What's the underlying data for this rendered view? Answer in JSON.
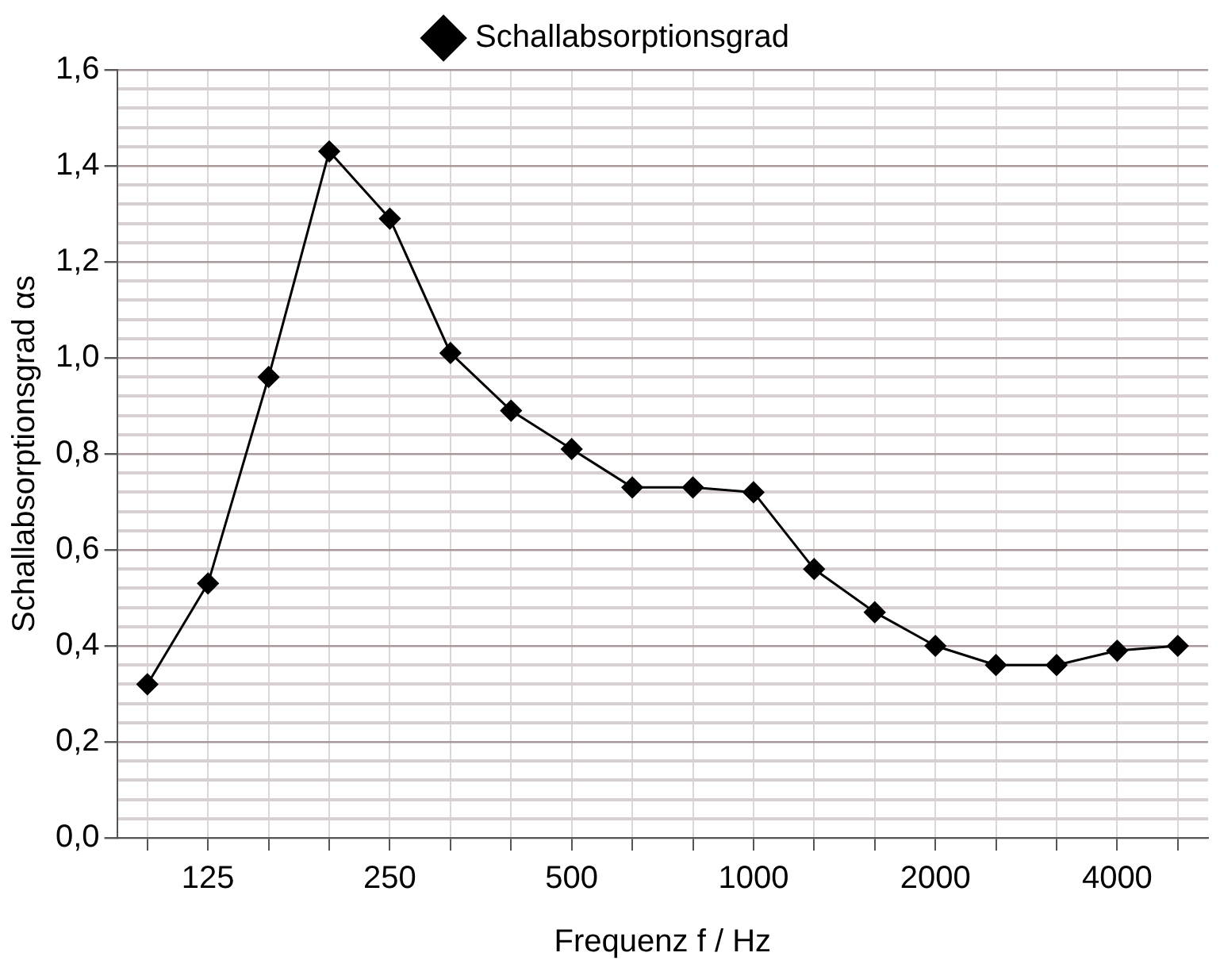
{
  "chart_data": {
    "type": "line",
    "xlabel": "Frequenz f / Hz",
    "ylabel": "Schallabsorptionsgrad αs",
    "categories": [
      null,
      "125",
      null,
      null,
      "250",
      null,
      null,
      "500",
      null,
      null,
      "1000",
      null,
      null,
      "2000",
      null,
      null,
      "4000",
      null
    ],
    "series": [
      {
        "name": "Schallabsorptionsgrad",
        "color": "#000000",
        "values": [
          0.32,
          0.53,
          0.96,
          1.43,
          1.29,
          1.01,
          0.89,
          0.81,
          0.73,
          0.73,
          0.72,
          0.56,
          0.47,
          0.4,
          0.36,
          0.36,
          0.39,
          0.4
        ]
      }
    ],
    "ylim": [
      0,
      1.6
    ],
    "yticks": [
      {
        "value": 0,
        "label": "0,0"
      },
      {
        "value": 0.04,
        "label": null
      },
      {
        "value": 0.08,
        "label": null
      },
      {
        "value": 0.12,
        "label": null
      },
      {
        "value": 0.16,
        "label": null
      },
      {
        "value": 0.2,
        "label": "0,2"
      },
      {
        "value": 0.24,
        "label": null
      },
      {
        "value": 0.28,
        "label": null
      },
      {
        "value": 0.32,
        "label": null
      },
      {
        "value": 0.36,
        "label": null
      },
      {
        "value": 0.4,
        "label": "0,4"
      },
      {
        "value": 0.44,
        "label": null
      },
      {
        "value": 0.48,
        "label": null
      },
      {
        "value": 0.52,
        "label": null
      },
      {
        "value": 0.56,
        "label": null
      },
      {
        "value": 0.6,
        "label": "0,6"
      },
      {
        "value": 0.64,
        "label": null
      },
      {
        "value": 0.68,
        "label": null
      },
      {
        "value": 0.72,
        "label": null
      },
      {
        "value": 0.76,
        "label": null
      },
      {
        "value": 0.8,
        "label": "0,8"
      },
      {
        "value": 0.84,
        "label": null
      },
      {
        "value": 0.88,
        "label": null
      },
      {
        "value": 0.92,
        "label": null
      },
      {
        "value": 0.96,
        "label": null
      },
      {
        "value": 1.0,
        "label": "1,0"
      },
      {
        "value": 1.04,
        "label": null
      },
      {
        "value": 1.08,
        "label": null
      },
      {
        "value": 1.12,
        "label": null
      },
      {
        "value": 1.16,
        "label": null
      },
      {
        "value": 1.2,
        "label": "1,2"
      },
      {
        "value": 1.24,
        "label": null
      },
      {
        "value": 1.28,
        "label": null
      },
      {
        "value": 1.32,
        "label": null
      },
      {
        "value": 1.36,
        "label": null
      },
      {
        "value": 1.4,
        "label": "1,4"
      },
      {
        "value": 1.44,
        "label": null
      },
      {
        "value": 1.48,
        "label": null
      },
      {
        "value": 1.52,
        "label": null
      },
      {
        "value": 1.56,
        "label": null
      },
      {
        "value": 1.6,
        "label": "1,6"
      }
    ],
    "grid": true,
    "legend": "top",
    "marker": "diamond",
    "line_style": "solid"
  }
}
